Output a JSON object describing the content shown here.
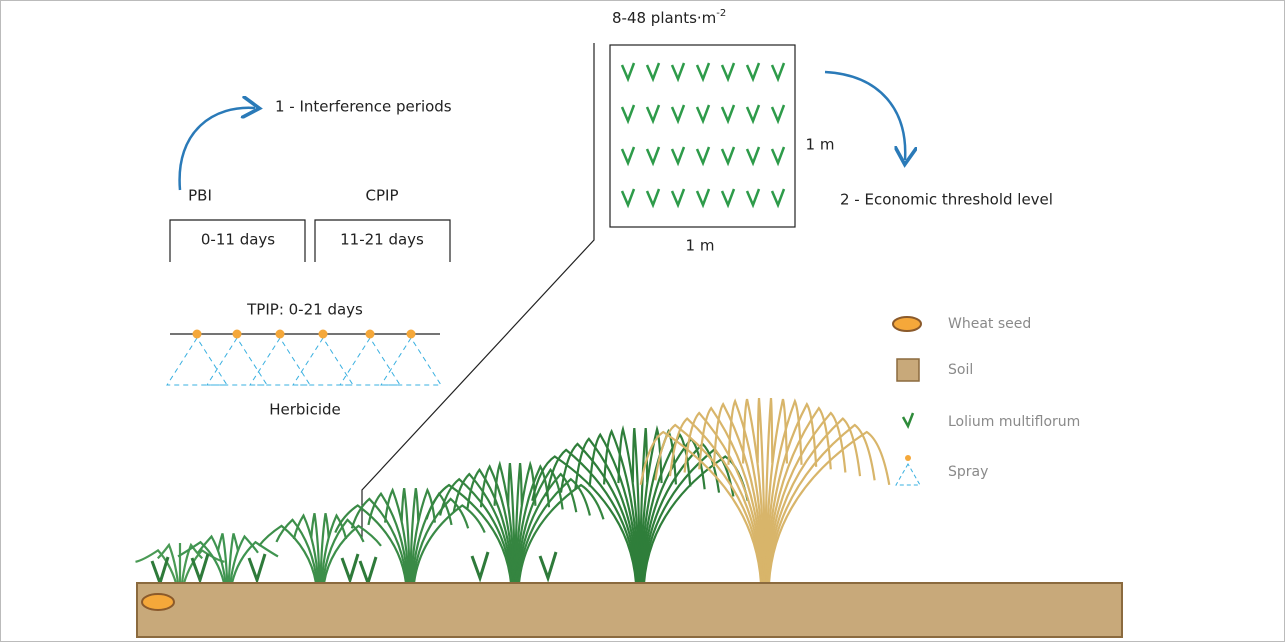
{
  "interference": {
    "title": "1 - Interference periods",
    "pbi": "PBI",
    "cpip": "CPIP",
    "pbi_range": "0-11 days",
    "cpip_range": "11-21 days",
    "tpip": "TPIP: 0-21 days",
    "herbicide": "Herbicide"
  },
  "threshold": {
    "density": "8-48 plants·m",
    "density_sup": "-2",
    "side": "1 m",
    "bottom": "1 m",
    "title": "2 - Economic threshold level"
  },
  "legend": {
    "items": [
      "Wheat seed",
      "Soil",
      "Lolium multiflorum",
      "Spray"
    ]
  }
}
